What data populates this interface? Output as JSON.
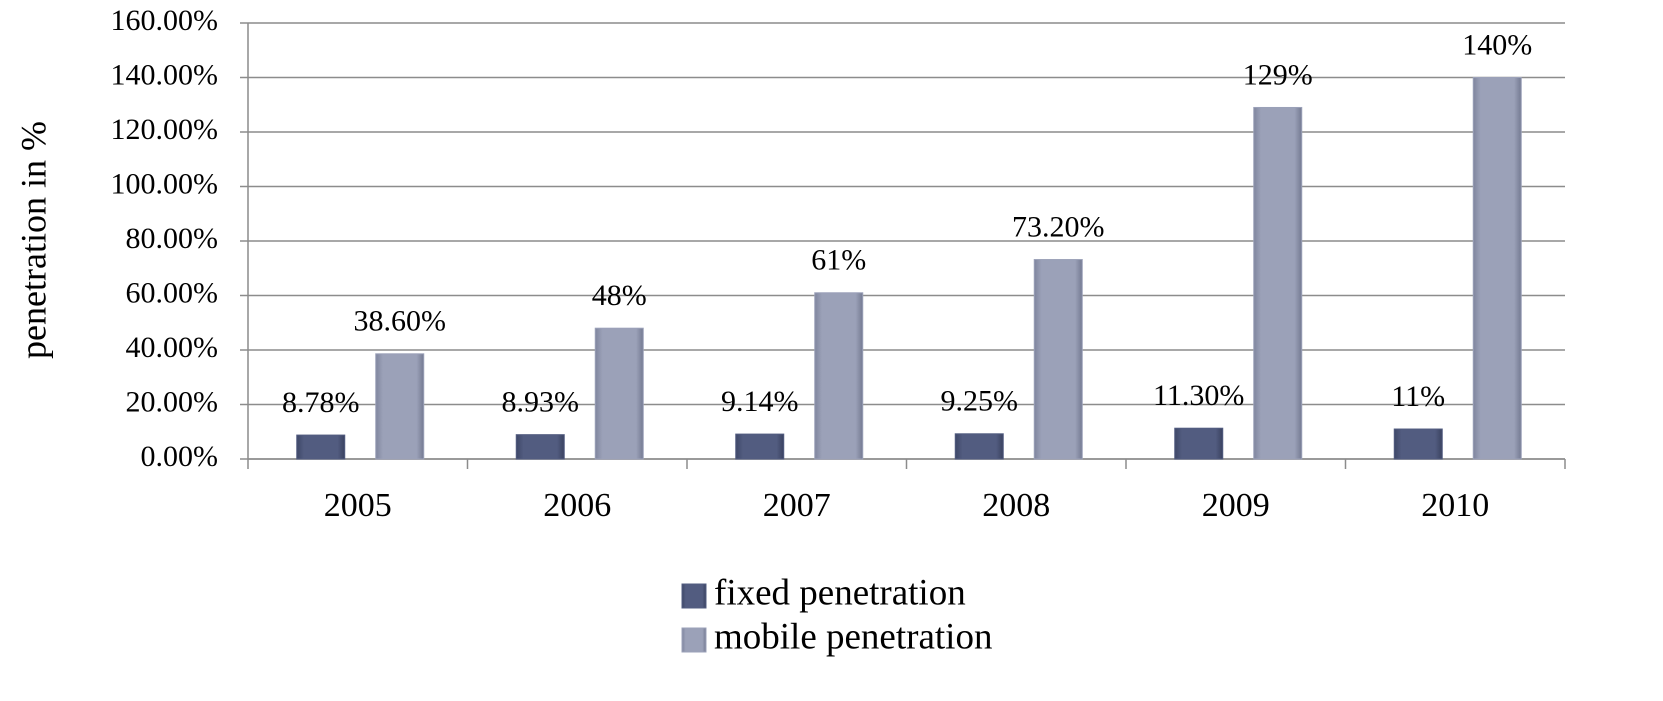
{
  "chart_data": {
    "type": "bar",
    "y_label": "penetration in %",
    "categories": [
      "2005",
      "2006",
      "2007",
      "2008",
      "2009",
      "2010"
    ],
    "series": [
      {
        "name": "fixed penetration",
        "color": "#525c80",
        "values": [
          8.78,
          8.93,
          9.14,
          9.25,
          11.3,
          11
        ],
        "value_labels": [
          "8.78%",
          "8.93%",
          "9.14%",
          "9.25%",
          "11.30%",
          "11%"
        ]
      },
      {
        "name": "mobile penetration",
        "color": "#9ba1b8",
        "values": [
          38.6,
          48,
          61,
          73.2,
          129,
          140
        ],
        "value_labels": [
          "38.60%",
          "48%",
          "61%",
          "73.20%",
          "129%",
          "140%"
        ]
      }
    ],
    "ylim": [
      0,
      160
    ],
    "yticks": [
      {
        "value": 0,
        "label": "0.00%"
      },
      {
        "value": 20,
        "label": "20.00%"
      },
      {
        "value": 40,
        "label": "40.00%"
      },
      {
        "value": 60,
        "label": "60.00%"
      },
      {
        "value": 80,
        "label": "80.00%"
      },
      {
        "value": 100,
        "label": "100.00%"
      },
      {
        "value": 120,
        "label": "120.00%"
      },
      {
        "value": 140,
        "label": "140.00%"
      },
      {
        "value": 160,
        "label": "160.00%"
      }
    ],
    "grid": true,
    "legend": "bottom"
  }
}
